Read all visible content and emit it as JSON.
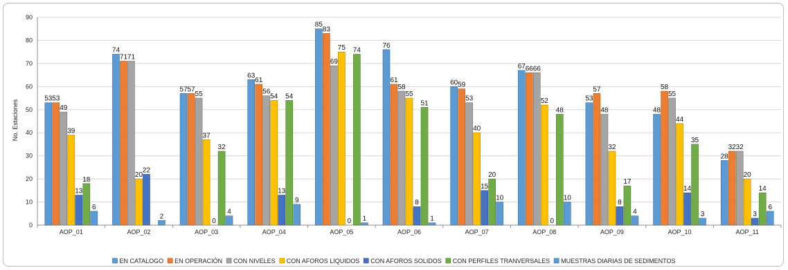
{
  "chart_data": {
    "type": "bar",
    "title": "",
    "xlabel": "",
    "ylabel": "No. Estaciones",
    "ylim": [
      0,
      90
    ],
    "yticks": [
      0,
      10,
      20,
      30,
      40,
      50,
      60,
      70,
      80,
      90
    ],
    "grid": true,
    "legend_position": "bottom",
    "categories": [
      "AOP_01",
      "AOP_02",
      "AOP_03",
      "AOP_04",
      "AOP_05",
      "AOP_06",
      "AOP_07",
      "AOP_08",
      "AOP_09",
      "AOP_10",
      "AOP_11"
    ],
    "series": [
      {
        "name": "EN CATALOGO",
        "color": "#5b9bd5",
        "values": [
          53,
          74,
          57,
          63,
          85,
          76,
          60,
          67,
          53,
          48,
          28
        ]
      },
      {
        "name": "EN OPERACIÓN",
        "color": "#ed7d31",
        "values": [
          53,
          71,
          57,
          61,
          83,
          61,
          59,
          66,
          57,
          58,
          32
        ]
      },
      {
        "name": "CON NIVELES",
        "color": "#a5a5a5",
        "values": [
          49,
          71,
          55,
          56,
          69,
          58,
          53,
          66,
          48,
          55,
          32
        ]
      },
      {
        "name": "CON AFOROS LIQUIDOS",
        "color": "#ffc000",
        "values": [
          39,
          20,
          37,
          54,
          75,
          55,
          40,
          52,
          32,
          44,
          20
        ]
      },
      {
        "name": "CON AFOROS SOLIDOS",
        "color": "#4472c4",
        "values": [
          13,
          22,
          0,
          13,
          0,
          8,
          15,
          0,
          8,
          14,
          3
        ]
      },
      {
        "name": "CON PERFILES TRANVERSALES",
        "color": "#70ad47",
        "values": [
          18,
          null,
          32,
          54,
          74,
          51,
          20,
          48,
          17,
          35,
          14
        ]
      },
      {
        "name": "MUESTRAS DIARIAS DE SEDIMENTOS",
        "color": "#5b9bd5",
        "values": [
          6,
          2,
          4,
          9,
          1,
          1,
          10,
          10,
          4,
          3,
          6
        ]
      }
    ]
  }
}
